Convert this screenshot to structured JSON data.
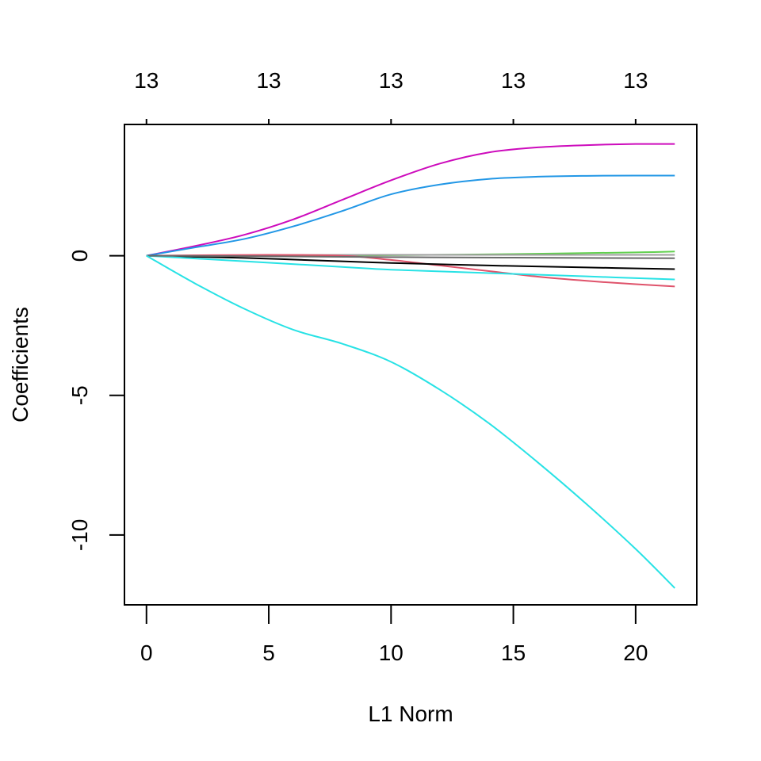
{
  "chart_data": {
    "type": "line",
    "title": "",
    "xlabel": "L1 Norm",
    "ylabel": "Coefficients",
    "xlim": [
      -0.9,
      22.5
    ],
    "ylim": [
      -12.5,
      4.7
    ],
    "x_ticks": [
      0,
      5,
      10,
      15,
      20
    ],
    "x_tick_labels": [
      "0",
      "5",
      "10",
      "15",
      "20"
    ],
    "y_ticks": [
      0,
      -5,
      -10
    ],
    "y_tick_labels": [
      "0",
      "-5",
      "-10"
    ],
    "top_axis": {
      "ticks": [
        0,
        5,
        10,
        15,
        20
      ],
      "labels": [
        "13",
        "13",
        "13",
        "13",
        "13"
      ]
    },
    "grid": false,
    "legend": "none",
    "series": [
      {
        "color": "#CD0BBC",
        "points": [
          [
            0,
            0
          ],
          [
            2,
            0.35
          ],
          [
            4,
            0.75
          ],
          [
            6,
            1.3
          ],
          [
            8,
            2.0
          ],
          [
            10,
            2.7
          ],
          [
            12,
            3.3
          ],
          [
            14,
            3.7
          ],
          [
            16,
            3.88
          ],
          [
            18,
            3.96
          ],
          [
            20,
            4.0
          ],
          [
            21.6,
            4.0
          ]
        ]
      },
      {
        "color": "#2297E6",
        "points": [
          [
            0,
            0
          ],
          [
            2,
            0.3
          ],
          [
            4,
            0.6
          ],
          [
            6,
            1.05
          ],
          [
            8,
            1.6
          ],
          [
            10,
            2.2
          ],
          [
            12,
            2.55
          ],
          [
            14,
            2.75
          ],
          [
            16,
            2.83
          ],
          [
            18,
            2.86
          ],
          [
            20,
            2.87
          ],
          [
            21.6,
            2.87
          ]
        ]
      },
      {
        "color": "#61D04F",
        "points": [
          [
            0,
            0
          ],
          [
            5,
            0.0
          ],
          [
            10,
            0.02
          ],
          [
            15,
            0.06
          ],
          [
            20,
            0.12
          ],
          [
            21.6,
            0.15
          ]
        ]
      },
      {
        "color": "#9E9E9E",
        "points": [
          [
            0,
            0
          ],
          [
            5,
            0.02
          ],
          [
            10,
            0.03
          ],
          [
            15,
            0.03
          ],
          [
            21.6,
            0.03
          ]
        ]
      },
      {
        "color": "#DF536B",
        "points": [
          [
            0,
            0
          ],
          [
            5,
            0.03
          ],
          [
            8,
            0.0
          ],
          [
            10,
            -0.15
          ],
          [
            12,
            -0.35
          ],
          [
            14,
            -0.55
          ],
          [
            16,
            -0.75
          ],
          [
            18,
            -0.9
          ],
          [
            20,
            -1.02
          ],
          [
            21.6,
            -1.1
          ]
        ]
      },
      {
        "color": "#000000",
        "points": [
          [
            0,
            0
          ],
          [
            4,
            -0.08
          ],
          [
            8,
            -0.2
          ],
          [
            10,
            -0.26
          ],
          [
            14,
            -0.35
          ],
          [
            18,
            -0.42
          ],
          [
            21.6,
            -0.48
          ]
        ]
      },
      {
        "color": "#28E2E5",
        "points": [
          [
            0,
            0
          ],
          [
            4,
            -0.2
          ],
          [
            8,
            -0.4
          ],
          [
            10,
            -0.5
          ],
          [
            14,
            -0.62
          ],
          [
            18,
            -0.74
          ],
          [
            21.6,
            -0.85
          ]
        ]
      },
      {
        "color": "#6A6A6A",
        "points": [
          [
            0,
            0
          ],
          [
            5,
            -0.02
          ],
          [
            10,
            -0.05
          ],
          [
            15,
            -0.07
          ],
          [
            21.6,
            -0.09
          ]
        ]
      },
      {
        "color": "#28E2E5",
        "points": [
          [
            0,
            0
          ],
          [
            2,
            -1.0
          ],
          [
            4,
            -1.9
          ],
          [
            6,
            -2.65
          ],
          [
            8,
            -3.15
          ],
          [
            10,
            -3.8
          ],
          [
            12,
            -4.8
          ],
          [
            14,
            -6.0
          ],
          [
            16,
            -7.4
          ],
          [
            18,
            -8.9
          ],
          [
            20,
            -10.5
          ],
          [
            21.6,
            -11.9
          ]
        ]
      }
    ]
  }
}
